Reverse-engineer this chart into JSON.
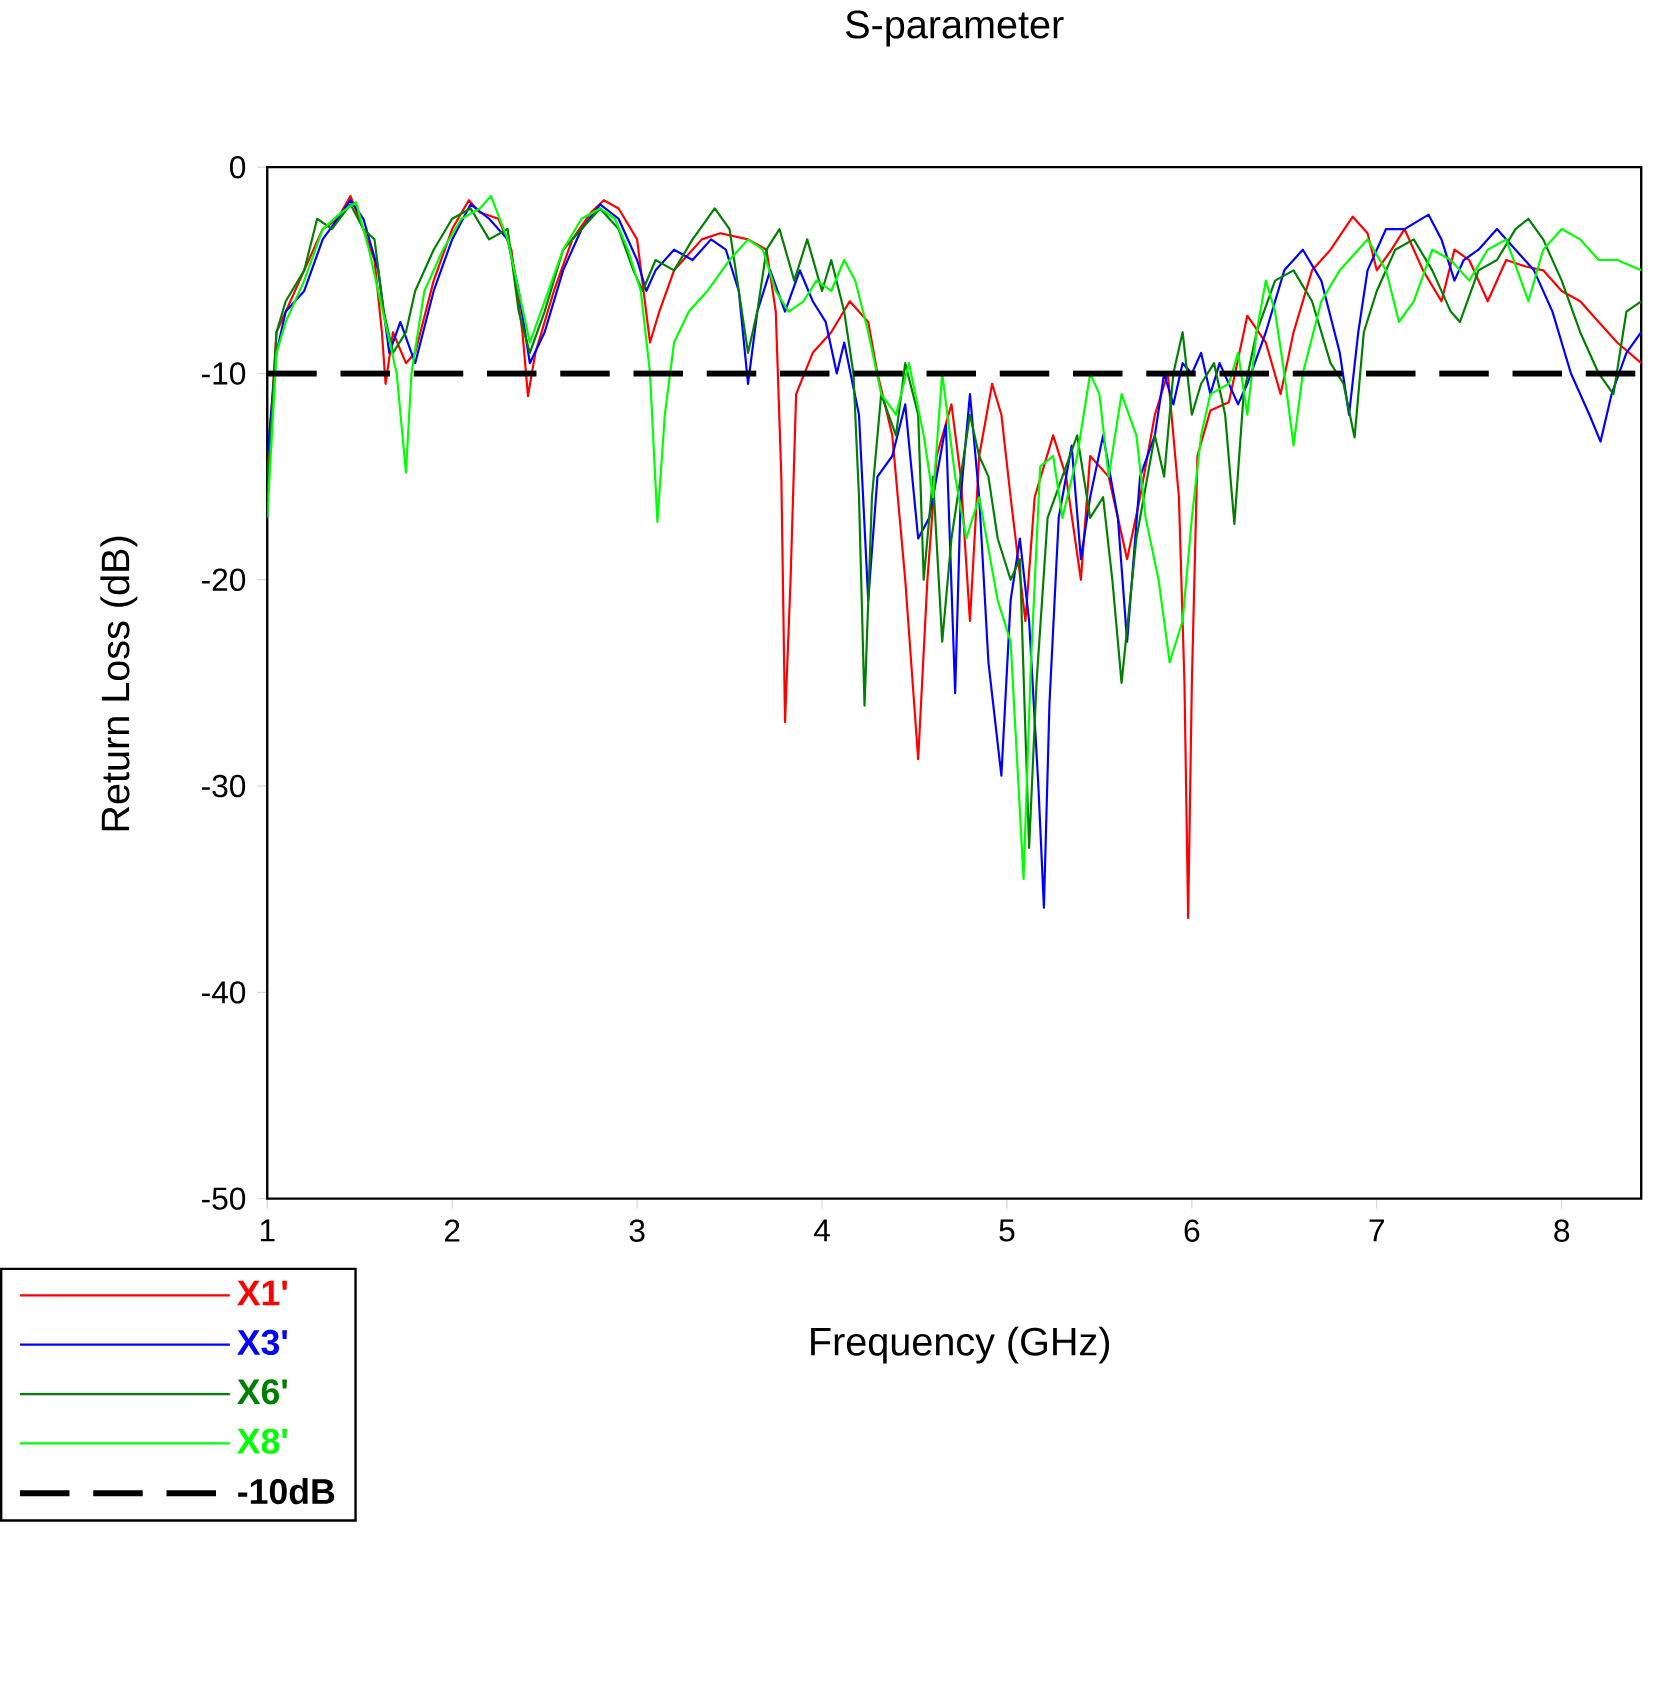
{
  "chart_data": {
    "type": "line",
    "title": "S-parameter",
    "xlabel": "Frequency (GHz)",
    "ylabel": "Return Loss (dB)",
    "xlim": [
      1,
      8.43
    ],
    "xticks": [
      1,
      2,
      3,
      4,
      5,
      6,
      7,
      8
    ],
    "ylim": [
      -50,
      0
    ],
    "yticks": [
      -50,
      -40,
      -30,
      -20,
      -10,
      0
    ],
    "legend": "bottom left",
    "ref_lines": [
      {
        "axis": "y",
        "value": -10,
        "label": "-10dB",
        "color": "#000000",
        "line_style": "dashed"
      }
    ],
    "series": [
      {
        "name": "X1'",
        "color": "#ff0000",
        "x": [
          1.0,
          1.05,
          1.1,
          1.2,
          1.3,
          1.38,
          1.45,
          1.52,
          1.58,
          1.62,
          1.64,
          1.68,
          1.75,
          1.8,
          1.9,
          2.0,
          2.09,
          2.15,
          2.25,
          2.32,
          2.38,
          2.41,
          2.45,
          2.55,
          2.65,
          2.75,
          2.82,
          2.9,
          3.0,
          3.07,
          3.12,
          3.2,
          3.35,
          3.45,
          3.6,
          3.7,
          3.75,
          3.78,
          3.8,
          3.83,
          3.86,
          3.95,
          4.05,
          4.15,
          4.25,
          4.3,
          4.38,
          4.45,
          4.52,
          4.57,
          4.62,
          4.7,
          4.75,
          4.8,
          4.85,
          4.92,
          4.97,
          5.02,
          5.1,
          5.15,
          5.25,
          5.32,
          5.4,
          5.45,
          5.55,
          5.65,
          5.72,
          5.8,
          5.87,
          5.93,
          5.96,
          5.98,
          6.0,
          6.03,
          6.1,
          6.2,
          6.3,
          6.4,
          6.48,
          6.55,
          6.65,
          6.75,
          6.87,
          6.95,
          7.0,
          7.08,
          7.15,
          7.25,
          7.35,
          7.42,
          7.5,
          7.6,
          7.7,
          7.8,
          7.9,
          8.0,
          8.1,
          8.2,
          8.3,
          8.43
        ],
        "values": [
          -15,
          -8,
          -7,
          -5,
          -3,
          -2.5,
          -1.4,
          -3,
          -4.5,
          -8,
          -10.5,
          -8,
          -9.5,
          -9,
          -5.5,
          -3,
          -1.6,
          -2.2,
          -2.5,
          -4,
          -8,
          -11.1,
          -9,
          -6,
          -3.5,
          -2.2,
          -1.6,
          -2,
          -3.5,
          -8.5,
          -7,
          -5,
          -3.5,
          -3.2,
          -3.5,
          -4,
          -7,
          -15,
          -26.9,
          -20,
          -11,
          -9,
          -8,
          -6.5,
          -7.5,
          -10,
          -13,
          -20,
          -28.7,
          -20,
          -14,
          -11.5,
          -15,
          -22,
          -14,
          -10.5,
          -12,
          -16,
          -22,
          -16,
          -13,
          -15,
          -20,
          -14,
          -15,
          -19,
          -16,
          -12,
          -10,
          -16,
          -25,
          -36.4,
          -25,
          -14,
          -11.8,
          -11.4,
          -7.2,
          -8.5,
          -11,
          -8,
          -5,
          -4,
          -2.4,
          -3.2,
          -5,
          -4,
          -3,
          -5,
          -6.5,
          -4,
          -4.5,
          -6.5,
          -4.5,
          -4.8,
          -5,
          -6,
          -6.5,
          -7.5,
          -8.5,
          -9.5
        ]
      },
      {
        "name": "X3'",
        "color": "#0000ff",
        "x": [
          1.0,
          1.05,
          1.1,
          1.2,
          1.3,
          1.38,
          1.45,
          1.52,
          1.6,
          1.66,
          1.72,
          1.8,
          1.9,
          2.0,
          2.1,
          2.2,
          2.3,
          2.36,
          2.42,
          2.5,
          2.6,
          2.7,
          2.8,
          2.9,
          3.0,
          3.05,
          3.1,
          3.2,
          3.3,
          3.4,
          3.48,
          3.55,
          3.6,
          3.65,
          3.72,
          3.8,
          3.88,
          3.95,
          4.02,
          4.08,
          4.12,
          4.2,
          4.25,
          4.3,
          4.38,
          4.45,
          4.52,
          4.58,
          4.62,
          4.67,
          4.72,
          4.75,
          4.8,
          4.85,
          4.9,
          4.97,
          5.02,
          5.07,
          5.12,
          5.17,
          5.2,
          5.23,
          5.28,
          5.35,
          5.4,
          5.45,
          5.52,
          5.6,
          5.65,
          5.72,
          5.8,
          5.85,
          5.9,
          5.95,
          6.0,
          6.05,
          6.1,
          6.15,
          6.25,
          6.3,
          6.4,
          6.5,
          6.6,
          6.7,
          6.8,
          6.85,
          6.9,
          6.95,
          7.05,
          7.15,
          7.28,
          7.35,
          7.42,
          7.47,
          7.55,
          7.65,
          7.75,
          7.85,
          7.95,
          8.05,
          8.15,
          8.21,
          8.27,
          8.35,
          8.43
        ],
        "values": [
          -14,
          -9,
          -7,
          -6,
          -3.5,
          -2.5,
          -1.6,
          -2.5,
          -5,
          -9,
          -7.5,
          -9.5,
          -6,
          -3.5,
          -1.8,
          -2.5,
          -3.5,
          -6,
          -9.5,
          -8,
          -5,
          -3,
          -1.8,
          -2.5,
          -4.5,
          -6,
          -5,
          -4,
          -4.5,
          -3.5,
          -4,
          -6,
          -10.5,
          -7,
          -5,
          -7,
          -5,
          -6.5,
          -7.5,
          -10,
          -8.5,
          -12,
          -21,
          -15,
          -14,
          -11.5,
          -18,
          -17,
          -15,
          -12.5,
          -25.5,
          -16,
          -11,
          -16,
          -24,
          -29.5,
          -21,
          -18,
          -22,
          -30,
          -35.9,
          -26,
          -17,
          -13.5,
          -19,
          -16,
          -13,
          -17,
          -23,
          -15,
          -13,
          -10,
          -11.5,
          -9.5,
          -10,
          -9,
          -11,
          -9.5,
          -11.5,
          -10.5,
          -8,
          -5,
          -4,
          -5.5,
          -9,
          -12,
          -8,
          -5,
          -3,
          -3,
          -2.3,
          -3.5,
          -5.5,
          -4.5,
          -4,
          -3,
          -4,
          -5,
          -7,
          -10,
          -12,
          -13.3,
          -11,
          -9,
          -8
        ]
      },
      {
        "name": "X6'",
        "color": "#008000",
        "x": [
          1.0,
          1.05,
          1.1,
          1.2,
          1.27,
          1.35,
          1.45,
          1.52,
          1.58,
          1.63,
          1.68,
          1.75,
          1.8,
          1.9,
          2.0,
          2.1,
          2.2,
          2.3,
          2.36,
          2.42,
          2.5,
          2.6,
          2.7,
          2.8,
          2.9,
          2.98,
          3.03,
          3.1,
          3.2,
          3.3,
          3.42,
          3.5,
          3.55,
          3.6,
          3.65,
          3.7,
          3.77,
          3.85,
          3.92,
          4.0,
          4.05,
          4.12,
          4.17,
          4.2,
          4.23,
          4.27,
          4.32,
          4.4,
          4.45,
          4.52,
          4.55,
          4.6,
          4.65,
          4.7,
          4.75,
          4.8,
          4.85,
          4.9,
          4.95,
          5.02,
          5.07,
          5.12,
          5.16,
          5.22,
          5.3,
          5.38,
          5.45,
          5.52,
          5.57,
          5.62,
          5.7,
          5.8,
          5.85,
          5.9,
          5.95,
          6.0,
          6.05,
          6.12,
          6.18,
          6.23,
          6.28,
          6.35,
          6.45,
          6.55,
          6.65,
          6.75,
          6.82,
          6.88,
          6.93,
          7.0,
          7.1,
          7.2,
          7.3,
          7.4,
          7.45,
          7.55,
          7.65,
          7.75,
          7.82,
          7.9,
          8.0,
          8.1,
          8.2,
          8.28,
          8.35,
          8.43
        ],
        "values": [
          -16,
          -8,
          -6.5,
          -5,
          -2.5,
          -3,
          -1.8,
          -3,
          -3.5,
          -7,
          -9,
          -8,
          -6,
          -4,
          -2.5,
          -2,
          -3.5,
          -3,
          -7,
          -9,
          -7,
          -4,
          -3,
          -2,
          -3,
          -5,
          -6,
          -4.5,
          -5,
          -3.5,
          -2,
          -3,
          -6,
          -9,
          -7,
          -4,
          -3,
          -5.5,
          -3.5,
          -6,
          -4.5,
          -7,
          -10,
          -16,
          -26.1,
          -16,
          -11,
          -13,
          -9.5,
          -12,
          -20,
          -15,
          -23,
          -18,
          -15,
          -12,
          -14,
          -15,
          -18,
          -20,
          -19,
          -33,
          -25,
          -17,
          -15,
          -13,
          -17,
          -16,
          -20,
          -25,
          -18,
          -13,
          -15,
          -10,
          -8,
          -12,
          -10.5,
          -9.5,
          -12,
          -17.3,
          -11,
          -8,
          -5.5,
          -5,
          -6.5,
          -9.5,
          -10.5,
          -13.1,
          -8,
          -6,
          -4,
          -3.5,
          -5,
          -7,
          -7.5,
          -5,
          -4.5,
          -3,
          -2.5,
          -3.5,
          -5.5,
          -8,
          -10,
          -11,
          -7,
          -6.5
        ]
      },
      {
        "name": "X8'",
        "color": "#00ff00",
        "x": [
          1.0,
          1.05,
          1.1,
          1.2,
          1.3,
          1.4,
          1.48,
          1.55,
          1.6,
          1.65,
          1.7,
          1.75,
          1.78,
          1.85,
          1.95,
          2.05,
          2.15,
          2.21,
          2.3,
          2.36,
          2.42,
          2.5,
          2.6,
          2.7,
          2.8,
          2.88,
          2.95,
          3.02,
          3.07,
          3.11,
          3.15,
          3.2,
          3.28,
          3.38,
          3.5,
          3.6,
          3.68,
          3.75,
          3.82,
          3.9,
          3.97,
          4.05,
          4.12,
          4.18,
          4.25,
          4.32,
          4.4,
          4.47,
          4.55,
          4.6,
          4.65,
          4.72,
          4.78,
          4.85,
          4.95,
          5.02,
          5.09,
          5.13,
          5.18,
          5.25,
          5.3,
          5.38,
          5.45,
          5.5,
          5.55,
          5.62,
          5.7,
          5.75,
          5.82,
          5.88,
          5.95,
          6.0,
          6.05,
          6.1,
          6.2,
          6.25,
          6.3,
          6.35,
          6.4,
          6.45,
          6.5,
          6.55,
          6.6,
          6.7,
          6.8,
          6.95,
          7.05,
          7.12,
          7.2,
          7.3,
          7.4,
          7.5,
          7.6,
          7.7,
          7.82,
          7.9,
          8.0,
          8.1,
          8.2,
          8.3,
          8.43
        ],
        "values": [
          -17,
          -9,
          -7.5,
          -5.5,
          -3,
          -2.2,
          -1.7,
          -4,
          -6,
          -8,
          -10,
          -14.8,
          -10,
          -6,
          -4,
          -2.5,
          -2,
          -1.4,
          -3.5,
          -6,
          -8.5,
          -6.5,
          -4,
          -2.5,
          -2,
          -2.5,
          -4,
          -6,
          -10,
          -17.2,
          -12,
          -8.5,
          -7,
          -6,
          -4.5,
          -3.5,
          -4,
          -6,
          -7,
          -6.5,
          -5.5,
          -6,
          -4.5,
          -5.5,
          -8,
          -11,
          -12,
          -9.5,
          -13,
          -16,
          -10,
          -15,
          -18,
          -16,
          -21,
          -23,
          -34.5,
          -24,
          -14.5,
          -14,
          -17,
          -14,
          -10,
          -11,
          -15,
          -11,
          -13,
          -17,
          -20,
          -24,
          -22,
          -17,
          -13,
          -11,
          -10.5,
          -9,
          -12,
          -8,
          -5.5,
          -7,
          -10,
          -13.5,
          -10,
          -6.5,
          -5,
          -3.5,
          -5,
          -7.5,
          -6.5,
          -4,
          -4.5,
          -5.5,
          -4,
          -3.5,
          -6.5,
          -4,
          -3,
          -3.5,
          -4.5,
          -4.5,
          -5
        ]
      }
    ]
  }
}
